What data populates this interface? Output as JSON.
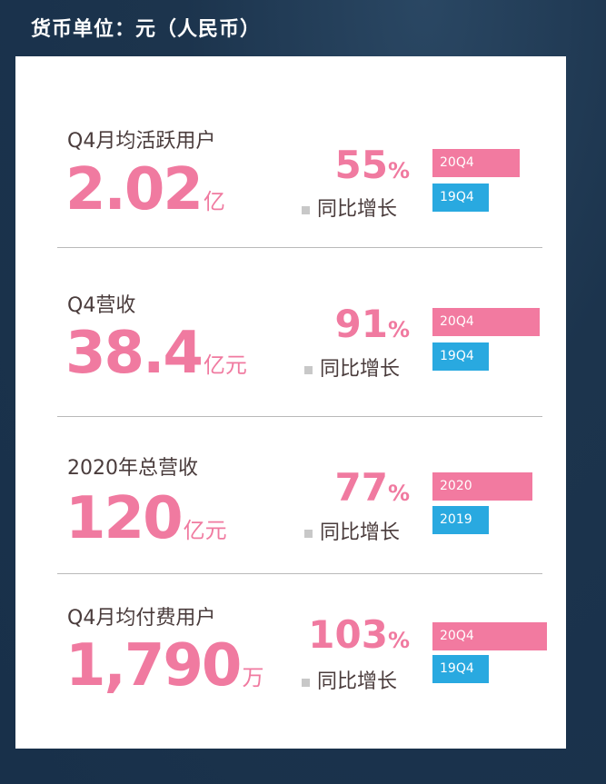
{
  "header": {
    "title": "货币单位：元（人民币）"
  },
  "metrics": [
    {
      "label": "Q4月均活跃用户",
      "value": "2.02",
      "unit": "亿",
      "growth": "55",
      "growth_suffix": "%",
      "yoy_label": "同比增长",
      "bar_current": {
        "label": "20Q4",
        "relative_value": 1.55
      },
      "bar_previous": {
        "label": "19Q4",
        "relative_value": 1.0
      }
    },
    {
      "label": "Q4营收",
      "value": "38.4",
      "unit": "亿元",
      "growth": "91",
      "growth_suffix": "%",
      "yoy_label": "同比增长",
      "bar_current": {
        "label": "20Q4",
        "relative_value": 1.91
      },
      "bar_previous": {
        "label": "19Q4",
        "relative_value": 1.0
      }
    },
    {
      "label": "2020年总营收",
      "value": "120",
      "unit": "亿元",
      "growth": "77",
      "growth_suffix": "%",
      "yoy_label": "同比增长",
      "bar_current": {
        "label": "2020",
        "relative_value": 1.77
      },
      "bar_previous": {
        "label": "2019",
        "relative_value": 1.0
      }
    },
    {
      "label": "Q4月均付费用户",
      "value": "1,790",
      "unit": "万",
      "growth": "103",
      "growth_suffix": "%",
      "yoy_label": "同比增长",
      "bar_current": {
        "label": "20Q4",
        "relative_value": 2.03
      },
      "bar_previous": {
        "label": "19Q4",
        "relative_value": 1.0
      }
    }
  ],
  "colors": {
    "accent_pink": "#f07aa0",
    "bar_pink": "#f27aa0",
    "bar_blue": "#29a9e0",
    "background": "#1d3650"
  }
}
